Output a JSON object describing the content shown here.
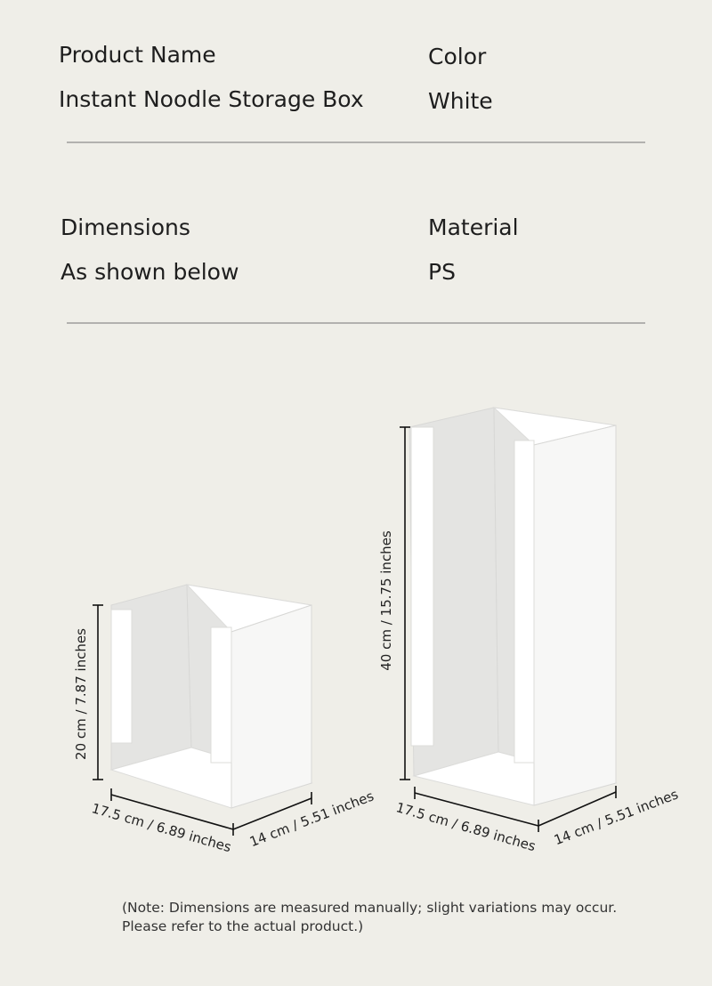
{
  "specs": [
    {
      "label": "Product Name",
      "value": "Instant Noodle Storage Box"
    },
    {
      "label": "Color",
      "value": "White"
    },
    {
      "label": "Dimensions",
      "value": "As shown below"
    },
    {
      "label": "Material",
      "value": "PS"
    }
  ],
  "small_box": {
    "height": "20 cm / 7.87 inches",
    "width": "17.5 cm / 6.89 inches",
    "depth": "14 cm / 5.51 inches"
  },
  "large_box": {
    "height": "40 cm / 15.75 inches",
    "width": "17.5 cm / 6.89 inches",
    "depth": "14 cm / 5.51 inches"
  },
  "note": [
    "(Note: Dimensions are measured manually; slight variations may occur.",
    "Please refer to the actual product.)"
  ]
}
